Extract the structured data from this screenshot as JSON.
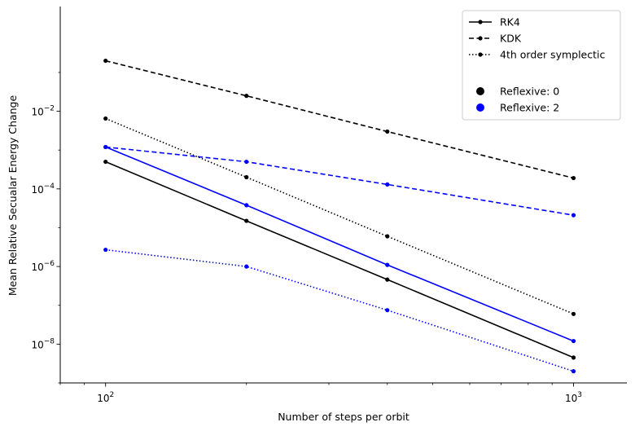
{
  "chart_data": {
    "type": "line",
    "xscale": "log",
    "yscale": "log",
    "xlim": [
      80,
      1300
    ],
    "ylim": [
      1e-09,
      5
    ],
    "xlabel": "Number of steps per orbit",
    "ylabel": "Mean Relative Secualar Energy Change",
    "x": [
      100,
      200,
      400,
      1000
    ],
    "x_ticks": [
      {
        "value": 100,
        "base": "10",
        "exp": "2"
      },
      {
        "value": 1000,
        "base": "10",
        "exp": "3"
      }
    ],
    "y_ticks": [
      {
        "value": 1e-08,
        "base": "10",
        "exp": "−8"
      },
      {
        "value": 1e-06,
        "base": "10",
        "exp": "−6"
      },
      {
        "value": 0.0001,
        "base": "10",
        "exp": "−4"
      },
      {
        "value": 0.01,
        "base": "10",
        "exp": "−2"
      }
    ],
    "grid": false,
    "legend_position": "top-right",
    "legend": {
      "methods": [
        {
          "label": "RK4",
          "dash": "solid"
        },
        {
          "label": "KDK",
          "dash": "dashed"
        },
        {
          "label": "4th order symplectic",
          "dash": "dotted"
        }
      ],
      "reflexive": [
        {
          "label": "Reflexive: 0",
          "color": "#000000"
        },
        {
          "label": "Reflexive: 2",
          "color": "#0000ff"
        }
      ]
    },
    "series": [
      {
        "method": "RK4",
        "reflexive": 0,
        "color": "#000000",
        "dash": "solid",
        "values": [
          0.0005,
          1.5e-05,
          4.6e-07,
          4.5e-09
        ]
      },
      {
        "method": "KDK",
        "reflexive": 0,
        "color": "#000000",
        "dash": "dashed",
        "values": [
          0.2,
          0.025,
          0.003,
          0.00019
        ]
      },
      {
        "method": "4th order symplectic",
        "reflexive": 0,
        "color": "#000000",
        "dash": "dotted",
        "values": [
          0.0065,
          0.0002,
          6e-06,
          6e-08
        ]
      },
      {
        "method": "RK4",
        "reflexive": 2,
        "color": "#0000ff",
        "dash": "solid",
        "values": [
          0.0012,
          3.8e-05,
          1.1e-06,
          1.2e-08
        ]
      },
      {
        "method": "KDK",
        "reflexive": 2,
        "color": "#0000ff",
        "dash": "dashed",
        "values": [
          0.0012,
          0.0005,
          0.00013,
          2.1e-05
        ]
      },
      {
        "method": "4th order symplectic",
        "reflexive": 2,
        "color": "#0000ff",
        "dash": "dotted",
        "values": [
          2.7e-06,
          1e-06,
          7.5e-08,
          2e-09
        ]
      }
    ]
  }
}
